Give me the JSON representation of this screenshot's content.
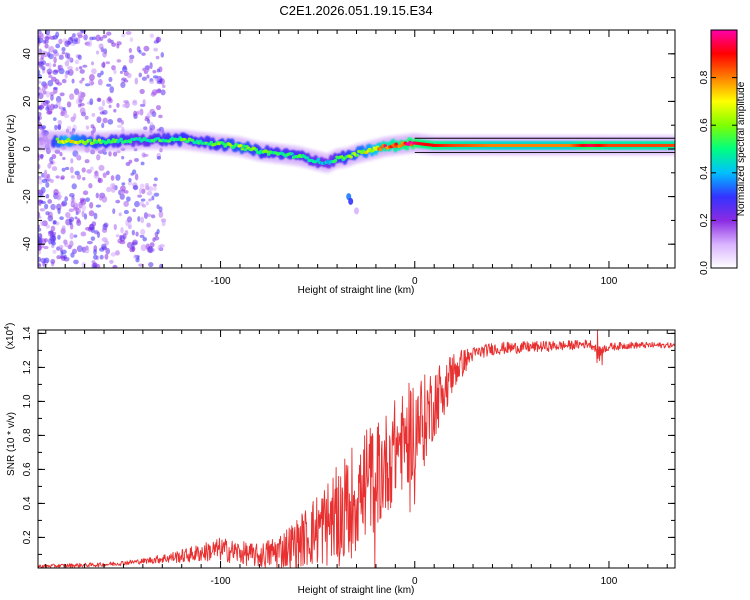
{
  "title": "C2E1.2026.051.19.15.E34",
  "chart_data": [
    {
      "type": "heatmap",
      "name": "spectrogram",
      "xlabel": "Height of straight line (km)",
      "ylabel": "Frequency (Hz)",
      "xlim": [
        -194,
        134
      ],
      "ylim": [
        -50,
        50
      ],
      "xticks": [
        -100,
        0,
        100
      ],
      "xtick_labels": [
        "-100",
        "0",
        "100"
      ],
      "yticks": [
        -40,
        -20,
        0,
        20,
        40
      ],
      "ytick_labels": [
        "-40",
        "-20",
        "0",
        "20",
        "40"
      ],
      "colorbar": {
        "label": "Normalized spectral amplitude",
        "range": [
          0.0,
          1.0
        ],
        "ticks": [
          0.0,
          0.2,
          0.4,
          0.6,
          0.8
        ],
        "tick_labels": [
          "0.0",
          "0.2",
          "0.4",
          "0.6",
          "0.8"
        ],
        "colors": [
          "#ffffff",
          "#d9b3ff",
          "#8a2be2",
          "#3333ff",
          "#00c0ff",
          "#00ff80",
          "#80ff00",
          "#ffff00",
          "#ff8000",
          "#ff0000",
          "#ff00aa"
        ]
      },
      "ridge": {
        "x": [
          -190,
          -180,
          -170,
          -160,
          -150,
          -140,
          -130,
          -120,
          -110,
          -100,
          -90,
          -80,
          -70,
          -60,
          -50,
          -45,
          -40,
          -35,
          -30,
          -25,
          -20,
          -15,
          -10,
          -5,
          0,
          5,
          10,
          20,
          40,
          60,
          80,
          90,
          100,
          110,
          134
        ],
        "freq": [
          3.5,
          3.5,
          3.0,
          3.0,
          3.5,
          4.0,
          4.0,
          4.0,
          3.0,
          2.0,
          1.0,
          -1.0,
          -2.0,
          -3.0,
          -5.0,
          -6.0,
          -4.0,
          -3.5,
          -2.0,
          -1.0,
          0.0,
          1.0,
          1.5,
          2.0,
          2.5,
          2.0,
          1.5,
          1.5,
          1.5,
          1.5,
          1.5,
          1.5,
          1.5,
          1.5,
          1.5
        ],
        "amplitude": [
          0.45,
          0.7,
          0.6,
          0.55,
          0.5,
          0.45,
          0.5,
          0.55,
          0.5,
          0.55,
          0.6,
          0.55,
          0.5,
          0.5,
          0.45,
          0.4,
          0.5,
          0.55,
          0.6,
          0.65,
          0.75,
          0.85,
          0.85,
          0.9,
          0.95,
          0.9,
          0.9,
          0.85,
          0.8,
          0.8,
          0.8,
          0.95,
          0.85,
          0.85,
          0.85
        ]
      }
    },
    {
      "type": "line",
      "name": "snr",
      "xlabel": "Height of straight line (km)",
      "ylabel": "SNR (10 * v/v)",
      "scale_label": "(x10",
      "scale_exponent": "4",
      "scale_close": ")",
      "xlim": [
        -194,
        134
      ],
      "ylim": [
        0.02,
        1.42
      ],
      "xticks": [
        -100,
        0,
        100
      ],
      "xtick_labels": [
        "-100",
        "0",
        "100"
      ],
      "yticks": [
        0.2,
        0.4,
        0.6,
        0.8,
        1.0,
        1.2,
        1.4
      ],
      "ytick_labels": [
        "0.2",
        "0.4",
        "0.6",
        "0.8",
        "1.0",
        "1.2",
        "1.4"
      ],
      "color": "#e83030",
      "trend": {
        "x": [
          -194,
          -160,
          -140,
          -120,
          -110,
          -100,
          -90,
          -80,
          -70,
          -60,
          -50,
          -40,
          -35,
          -30,
          -25,
          -20,
          -15,
          -10,
          -5,
          0,
          5,
          10,
          15,
          20,
          30,
          40,
          60,
          80,
          90,
          95,
          100,
          110,
          134
        ],
        "y": [
          0.03,
          0.04,
          0.06,
          0.09,
          0.11,
          0.13,
          0.11,
          0.09,
          0.12,
          0.17,
          0.25,
          0.32,
          0.38,
          0.45,
          0.52,
          0.56,
          0.63,
          0.72,
          0.78,
          0.85,
          0.9,
          1.0,
          1.08,
          1.18,
          1.28,
          1.31,
          1.32,
          1.33,
          1.34,
          1.3,
          1.32,
          1.33,
          1.33
        ]
      },
      "noise_amplitude": {
        "x": [
          -194,
          -140,
          -120,
          -100,
          -80,
          -60,
          -40,
          -30,
          -20,
          -10,
          0,
          10,
          20,
          30,
          134
        ],
        "y": [
          0.01,
          0.015,
          0.04,
          0.07,
          0.07,
          0.15,
          0.3,
          0.35,
          0.32,
          0.3,
          0.3,
          0.22,
          0.12,
          0.04,
          0.015
        ]
      }
    }
  ]
}
